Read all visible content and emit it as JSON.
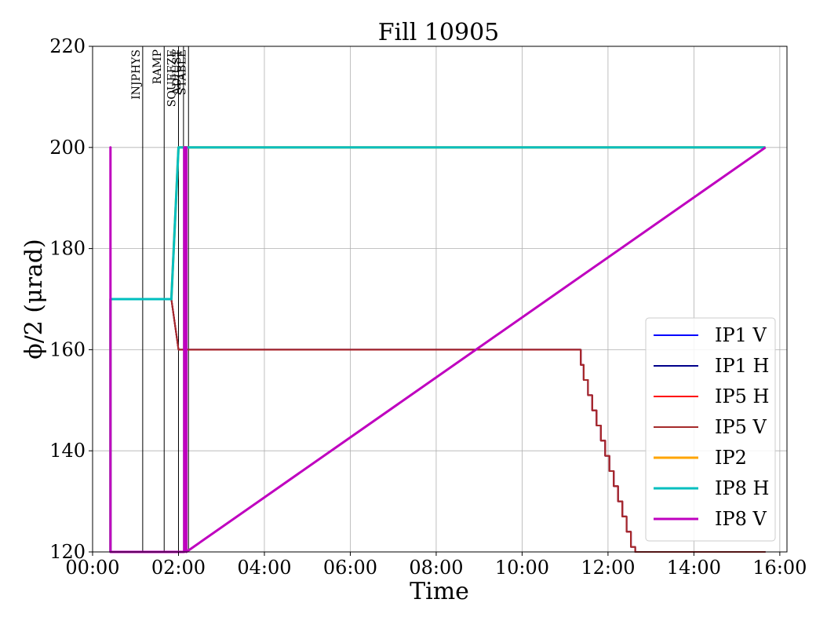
{
  "chart_data": {
    "type": "line",
    "title": "Fill 10905",
    "xlabel": "Time",
    "ylabel": "ϕ/2 (μrad)",
    "xlim": [
      "00:00",
      "16:10"
    ],
    "ylim": [
      120,
      220
    ],
    "x_ticks": [
      "00:00",
      "02:00",
      "04:00",
      "06:00",
      "08:00",
      "10:00",
      "12:00",
      "14:00",
      "16:00"
    ],
    "y_ticks": [
      120,
      140,
      160,
      180,
      200,
      220
    ],
    "grid": true,
    "legend_position": "lower right",
    "phases": [
      {
        "label": "INJPHYS",
        "time": "01:10"
      },
      {
        "label": "RAMP",
        "time": "01:40"
      },
      {
        "label": "SQUEEZE",
        "time": "02:00"
      },
      {
        "label": "ADJUST",
        "time": "02:07"
      },
      {
        "label": "STABLE",
        "time": "02:14"
      }
    ],
    "series": [
      {
        "name": "IP1 V",
        "color": "#0000ff",
        "x": [
          "00:25",
          "00:25",
          "01:50",
          "02:00",
          "11:22",
          "11:22",
          "11:26",
          "11:26",
          "11:32",
          "11:32",
          "11:38",
          "11:38",
          "11:44",
          "11:44",
          "11:50",
          "11:50",
          "11:56",
          "11:56",
          "12:02",
          "12:02",
          "12:08",
          "12:08",
          "12:14",
          "12:14",
          "12:20",
          "12:20",
          "12:26",
          "12:26",
          "12:32",
          "12:32",
          "12:38",
          "12:38",
          "12:44",
          "12:44",
          "12:50",
          "12:50",
          "15:40"
        ],
        "y": [
          120,
          170,
          170,
          160,
          160,
          157,
          157,
          154,
          154,
          151,
          151,
          148,
          148,
          145,
          145,
          142,
          142,
          139,
          139,
          136,
          136,
          133,
          133,
          130,
          130,
          127,
          127,
          124,
          124,
          121,
          121,
          118,
          118,
          115,
          115,
          112,
          112
        ]
      },
      {
        "name": "IP1 H",
        "color": "#00008b",
        "x": [
          "00:25",
          "00:25",
          "01:50",
          "02:00",
          "11:22",
          "11:22",
          "11:26",
          "11:26",
          "11:32",
          "11:32",
          "11:38",
          "11:38",
          "11:44",
          "11:44",
          "11:50",
          "11:50",
          "11:56",
          "11:56",
          "12:02",
          "12:02",
          "12:08",
          "12:08",
          "12:14",
          "12:14",
          "12:20",
          "12:20",
          "12:26",
          "12:26",
          "12:32",
          "12:32",
          "12:38",
          "12:38",
          "12:44",
          "12:44",
          "12:50",
          "12:50",
          "15:40"
        ],
        "y": [
          120,
          170,
          170,
          160,
          160,
          157,
          157,
          154,
          154,
          151,
          151,
          148,
          148,
          145,
          145,
          142,
          142,
          139,
          139,
          136,
          136,
          133,
          133,
          130,
          130,
          127,
          127,
          124,
          124,
          121,
          121,
          118,
          118,
          115,
          115,
          112,
          112
        ]
      },
      {
        "name": "IP5 H",
        "color": "#ff0000",
        "x": [
          "00:25",
          "00:25",
          "01:50",
          "02:00",
          "11:22",
          "11:22",
          "11:26",
          "11:26",
          "11:32",
          "11:32",
          "11:38",
          "11:38",
          "11:44",
          "11:44",
          "11:50",
          "11:50",
          "11:56",
          "11:56",
          "12:02",
          "12:02",
          "12:08",
          "12:08",
          "12:14",
          "12:14",
          "12:20",
          "12:20",
          "12:26",
          "12:26",
          "12:32",
          "12:32",
          "12:38",
          "12:38",
          "12:44",
          "12:44",
          "12:50",
          "12:50",
          "15:40"
        ],
        "y": [
          120,
          170,
          170,
          160,
          160,
          157,
          157,
          154,
          154,
          151,
          151,
          148,
          148,
          145,
          145,
          142,
          142,
          139,
          139,
          136,
          136,
          133,
          133,
          130,
          130,
          127,
          127,
          124,
          124,
          121,
          121,
          118,
          118,
          115,
          115,
          112,
          112
        ]
      },
      {
        "name": "IP5 V",
        "color": "#a52a2a",
        "x": [
          "00:25",
          "00:25",
          "01:50",
          "02:00",
          "11:22",
          "11:22",
          "11:26",
          "11:26",
          "11:32",
          "11:32",
          "11:38",
          "11:38",
          "11:44",
          "11:44",
          "11:50",
          "11:50",
          "11:56",
          "11:56",
          "12:02",
          "12:02",
          "12:08",
          "12:08",
          "12:14",
          "12:14",
          "12:20",
          "12:20",
          "12:26",
          "12:26",
          "12:32",
          "12:32",
          "12:38",
          "12:38",
          "12:44",
          "12:44",
          "12:50",
          "12:50",
          "15:40"
        ],
        "y": [
          120,
          170,
          170,
          160,
          160,
          157,
          157,
          154,
          154,
          151,
          151,
          148,
          148,
          145,
          145,
          142,
          142,
          139,
          139,
          136,
          136,
          133,
          133,
          130,
          130,
          127,
          127,
          124,
          124,
          121,
          121,
          118,
          118,
          115,
          115,
          112,
          112
        ]
      },
      {
        "name": "IP2",
        "color": "#ffa500",
        "x": [
          "00:25",
          "00:25",
          "01:50",
          "02:00",
          "15:40"
        ],
        "y": [
          120,
          170,
          170,
          200,
          200
        ]
      },
      {
        "name": "IP8 H",
        "color": "#00bfbf",
        "x": [
          "00:25",
          "00:25",
          "01:50",
          "02:00",
          "15:40"
        ],
        "y": [
          120,
          170,
          170,
          200,
          200
        ]
      },
      {
        "name": "IP8 V",
        "color": "#bf00bf",
        "x": [
          "00:25",
          "00:25",
          "00:25",
          "02:08",
          "02:08",
          "02:11",
          "02:11",
          "15:40"
        ],
        "y": [
          120,
          200,
          120,
          120,
          200,
          200,
          120,
          200
        ]
      }
    ]
  }
}
